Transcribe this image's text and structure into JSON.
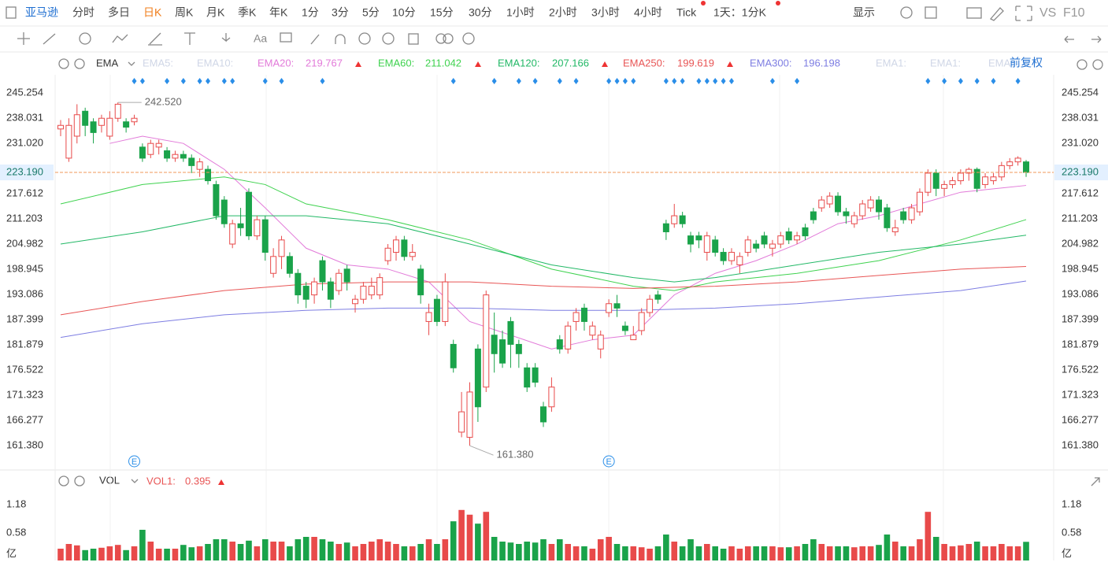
{
  "toolbar": {
    "symbol": "亚马逊",
    "periods": [
      "分时",
      "多日",
      "日K",
      "周K",
      "月K",
      "季K",
      "年K",
      "1分",
      "3分",
      "5分",
      "10分",
      "15分",
      "30分",
      "1小时",
      "2小时",
      "3小时",
      "4小时",
      "Tick"
    ],
    "active_period": 2,
    "interval": "1天：1分K",
    "display": "显示",
    "vs": "VS",
    "f10": "F10",
    "text_tool": "Aa"
  },
  "chart_data": [
    {
      "type": "candlestick",
      "indicator": "EMA",
      "adjust": "前复权",
      "log": true,
      "up_color": "#e84a4a",
      "down_color": "#1aa34a",
      "ylim": [
        156.8,
        250.6
      ],
      "yticks": [
        245.254,
        238.031,
        {
          "value": 231.02,
          "label": "231.020"
        },
        217.612,
        211.203,
        204.982,
        198.945,
        193.086,
        187.399,
        181.879,
        176.522,
        171.323,
        166.277,
        {
          "value": 161.38,
          "label": "161.380"
        }
      ],
      "last_price": {
        "value": 223.19,
        "label": "223.190"
      },
      "annotations": [
        {
          "x": 7,
          "value": 242.52,
          "label": "242.520"
        },
        {
          "x": 50,
          "value": 161.38,
          "label": "161.380"
        }
      ],
      "events": [
        {
          "x": 9,
          "label": "E"
        },
        {
          "x": 67,
          "label": "E"
        }
      ],
      "open": [
        235,
        227,
        233,
        240,
        237,
        236,
        233,
        238,
        237,
        237,
        230,
        228,
        230,
        229,
        227,
        228,
        227,
        224,
        224,
        220,
        216,
        205,
        210,
        218,
        207,
        211,
        198,
        202,
        202,
        198,
        195,
        193,
        201,
        196,
        194,
        199,
        191,
        192,
        193,
        193,
        201,
        203,
        206,
        202,
        199,
        187,
        192,
        187,
        182,
        164,
        163,
        181,
        173,
        184,
        183,
        187,
        182,
        177,
        177,
        169,
        169,
        183,
        181,
        187,
        190,
        184,
        181,
        189,
        191,
        186,
        183,
        185,
        189,
        193,
        210,
        210,
        212,
        207,
        207,
        203,
        206,
        203,
        201,
        200,
        203,
        205,
        207,
        204,
        205,
        208,
        206,
        209,
        213,
        214,
        215,
        217,
        213,
        210,
        212,
        214,
        216,
        214,
        208,
        213,
        211,
        213,
        218,
        223,
        219,
        220,
        221,
        223,
        224,
        220,
        221,
        222,
        225,
        226,
        226
      ],
      "high": [
        237.5,
        238,
        242,
        241,
        238,
        239,
        240,
        242.52,
        238,
        239,
        231,
        232,
        232,
        230,
        229,
        229,
        228,
        227,
        225,
        221,
        217,
        211,
        214,
        219,
        212,
        212,
        204,
        207,
        203,
        199,
        196,
        197,
        202,
        197,
        199,
        200,
        193,
        196,
        197,
        198,
        205,
        207,
        207,
        205,
        200,
        191,
        193,
        198,
        183,
        172,
        174,
        182,
        194,
        189,
        185,
        188,
        183,
        178,
        178,
        170,
        175,
        184,
        187,
        190,
        191,
        187,
        185,
        192,
        193,
        187,
        186,
        190,
        193,
        194,
        211,
        215,
        213,
        208,
        208,
        208,
        207,
        204,
        204,
        203,
        207,
        206,
        208,
        206,
        208,
        209,
        208,
        210,
        214,
        217,
        218,
        218,
        214,
        213,
        216,
        217,
        217,
        215,
        211,
        214,
        215,
        219,
        224,
        224,
        221,
        222,
        224,
        224.5,
        224.5,
        223,
        223,
        226,
        227,
        227.5,
        226.5
      ],
      "low": [
        233,
        226,
        231,
        233,
        231,
        234,
        232,
        237,
        234,
        236,
        226,
        227,
        228,
        226,
        226,
        226,
        223,
        222,
        220,
        211,
        209,
        204,
        207,
        206,
        206,
        201,
        197,
        199,
        197,
        191,
        190,
        191,
        194,
        190,
        193,
        194,
        189,
        191,
        192,
        192,
        200,
        201,
        201,
        201,
        191,
        184,
        186,
        186,
        176,
        163,
        161.38,
        166,
        172,
        176,
        177,
        177,
        177,
        172,
        173,
        165,
        168,
        180,
        180,
        185,
        185,
        183,
        179,
        188,
        188,
        184,
        183,
        184,
        188,
        191,
        206,
        209,
        209,
        203,
        204,
        201,
        202,
        200,
        200,
        198,
        202,
        203,
        204,
        202,
        204,
        205,
        205,
        206,
        210,
        213,
        214,
        212,
        210,
        209,
        211,
        213,
        211,
        208,
        207,
        210,
        210,
        212,
        217,
        217,
        217,
        219,
        220,
        221,
        218,
        219,
        220,
        221,
        224,
        225,
        222
      ],
      "close": [
        236,
        236,
        239,
        236,
        234,
        238,
        238,
        242,
        235.5,
        238,
        227,
        231,
        231,
        227,
        228,
        227,
        225,
        226,
        221,
        212,
        210,
        210,
        209,
        207,
        211,
        203,
        202,
        206,
        198,
        193,
        192,
        196,
        196,
        192,
        198,
        196,
        192,
        195,
        195,
        197,
        204,
        206,
        202,
        203,
        193,
        189,
        187,
        196,
        177,
        168,
        172,
        169,
        193,
        180,
        178,
        182,
        180,
        173,
        174,
        166,
        173,
        181,
        186,
        189,
        187,
        186,
        184,
        191,
        190,
        185,
        184,
        189,
        192,
        192,
        208,
        212,
        210,
        205,
        206,
        207,
        203,
        201,
        203,
        202,
        206,
        204,
        205,
        205,
        207,
        206,
        207,
        207,
        211,
        216,
        217,
        213,
        212,
        212,
        215,
        216,
        213,
        209,
        209,
        211,
        214,
        218,
        223,
        219,
        220,
        221,
        223,
        224,
        219,
        222,
        222,
        225,
        226,
        227,
        223.19
      ],
      "series": [
        {
          "name": "EMA20:",
          "color": "#e27ad9",
          "x": [
            6,
            10,
            15,
            20,
            25,
            30,
            35,
            40,
            45,
            50,
            55,
            60,
            65,
            70,
            75,
            80,
            85,
            90,
            95,
            100,
            105,
            110,
            118
          ],
          "values": [
            231,
            233,
            231,
            224,
            214,
            204,
            200,
            199,
            196,
            187,
            184,
            181,
            183,
            184,
            193,
            198,
            201,
            205,
            210,
            212,
            215,
            218,
            219.767
          ]
        },
        {
          "name": "EMA60:",
          "color": "#3fd24f",
          "x": [
            0,
            10,
            20,
            25,
            30,
            40,
            50,
            60,
            70,
            75,
            80,
            90,
            100,
            110,
            118
          ],
          "values": [
            215,
            220,
            222,
            220,
            215,
            211,
            206,
            199,
            195,
            194,
            196,
            198,
            201,
            206,
            211.042
          ]
        },
        {
          "name": "EMA120:",
          "color": "#22b866",
          "x": [
            0,
            10,
            20,
            30,
            40,
            50,
            60,
            70,
            75,
            80,
            90,
            100,
            110,
            118
          ],
          "values": [
            205,
            208,
            212,
            212,
            210,
            205,
            200,
            197,
            196,
            197,
            200,
            203,
            205,
            207.166
          ]
        },
        {
          "name": "EMA250:",
          "color": "#e85555",
          "x": [
            0,
            10,
            20,
            30,
            40,
            50,
            60,
            70,
            80,
            90,
            100,
            110,
            118
          ],
          "values": [
            188.5,
            191.5,
            194,
            195.5,
            196,
            196,
            195,
            194.5,
            195,
            196,
            197.5,
            199,
            199.619
          ]
        },
        {
          "name": "EMA300:",
          "color": "#7d7de2",
          "x": [
            0,
            10,
            20,
            30,
            40,
            50,
            60,
            70,
            80,
            90,
            100,
            110,
            118
          ],
          "values": [
            183.5,
            186.5,
            188.5,
            189.5,
            190,
            190,
            189.5,
            189.5,
            190,
            191,
            192.5,
            194,
            196.198
          ]
        }
      ],
      "inactive_series": [
        "EMA5:",
        "EMA10:",
        "EMA1:",
        "EMA1:",
        "EMA"
      ]
    },
    {
      "type": "bar",
      "indicator": "VOL",
      "ylim": [
        0,
        1.4
      ],
      "yticks": [
        1.18,
        0.58,
        {
          "value": 0,
          "label": "亿"
        }
      ],
      "series": [
        {
          "name": "VOL1:",
          "values": [
            0.25,
            0.35,
            0.32,
            0.22,
            0.25,
            0.27,
            0.3,
            0.33,
            0.22,
            0.3,
            0.65,
            0.4,
            0.25,
            0.25,
            0.25,
            0.33,
            0.28,
            0.3,
            0.35,
            0.45,
            0.45,
            0.4,
            0.35,
            0.42,
            0.3,
            0.45,
            0.4,
            0.4,
            0.3,
            0.45,
            0.5,
            0.5,
            0.45,
            0.4,
            0.35,
            0.38,
            0.3,
            0.35,
            0.4,
            0.45,
            0.4,
            0.35,
            0.3,
            0.3,
            0.35,
            0.45,
            0.35,
            0.45,
            0.83,
            1.07,
            0.97,
            0.78,
            1.03,
            0.5,
            0.4,
            0.38,
            0.35,
            0.4,
            0.38,
            0.45,
            0.35,
            0.45,
            0.35,
            0.3,
            0.3,
            0.25,
            0.45,
            0.5,
            0.35,
            0.3,
            0.3,
            0.28,
            0.25,
            0.3,
            0.55,
            0.4,
            0.3,
            0.45,
            0.3,
            0.35,
            0.3,
            0.25,
            0.3,
            0.25,
            0.3,
            0.3,
            0.3,
            0.3,
            0.28,
            0.28,
            0.3,
            0.35,
            0.45,
            0.35,
            0.3,
            0.3,
            0.3,
            0.28,
            0.3,
            0.3,
            0.33,
            0.55,
            0.4,
            0.3,
            0.3,
            0.45,
            1.03,
            0.5,
            0.35,
            0.3,
            0.32,
            0.35,
            0.4,
            0.3,
            0.3,
            0.35,
            0.3,
            0.3,
            0.395
          ]
        }
      ]
    }
  ]
}
